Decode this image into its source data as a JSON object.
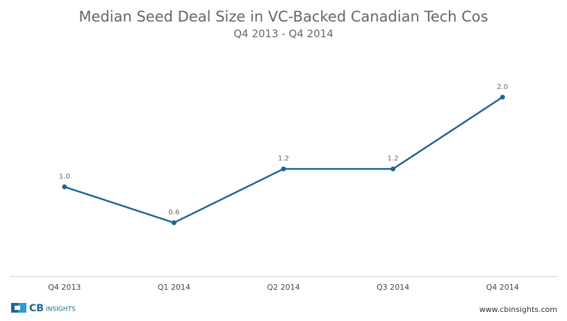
{
  "chart_data": {
    "type": "line",
    "title": "Median Seed Deal Size in VC-Backed Canadian Tech Cos",
    "subtitle": "Q4 2013 - Q4 2014",
    "categories": [
      "Q4 2013",
      "Q1 2014",
      "Q2 2014",
      "Q3 2014",
      "Q4 2014"
    ],
    "values": [
      1.0,
      0.6,
      1.2,
      1.2,
      2.0
    ],
    "value_labels": [
      "1.0",
      "0.6",
      "1.2",
      "1.2",
      "2.0"
    ],
    "color": "#1d6694",
    "ylim": [
      0,
      2.2
    ]
  },
  "footer": {
    "logo_bold": "CB",
    "logo_text": "INSIGHTS",
    "url": "www.cbinsights.com"
  }
}
